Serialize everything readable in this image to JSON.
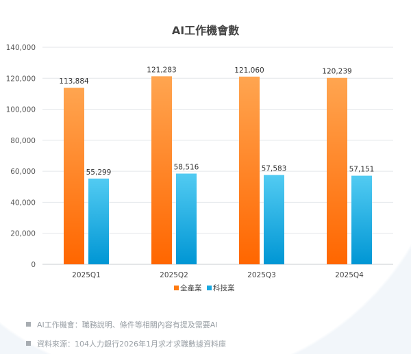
{
  "chart_data": {
    "type": "bar",
    "title": "AI工作機會數",
    "categories": [
      "2025Q1",
      "2025Q2",
      "2025Q3",
      "2025Q4"
    ],
    "series": [
      {
        "name": "全產業",
        "values": [
          113884,
          121283,
          121060,
          120239
        ],
        "color": "#ff7a10"
      },
      {
        "name": "科技業",
        "values": [
          55299,
          58516,
          57583,
          57151
        ],
        "color": "#19a8e0"
      }
    ],
    "ylim": [
      0,
      140000
    ],
    "yticks": [
      0,
      20000,
      40000,
      60000,
      80000,
      100000,
      120000,
      140000
    ],
    "xlabel": "",
    "ylabel": "",
    "grid": true,
    "legend": "bottom"
  },
  "footnotes": [
    "AI工作機會：職務說明、條件等相關內容有提及需要AI",
    "資料來源：104人力銀行2026年1月求才求職數據資料庫"
  ]
}
